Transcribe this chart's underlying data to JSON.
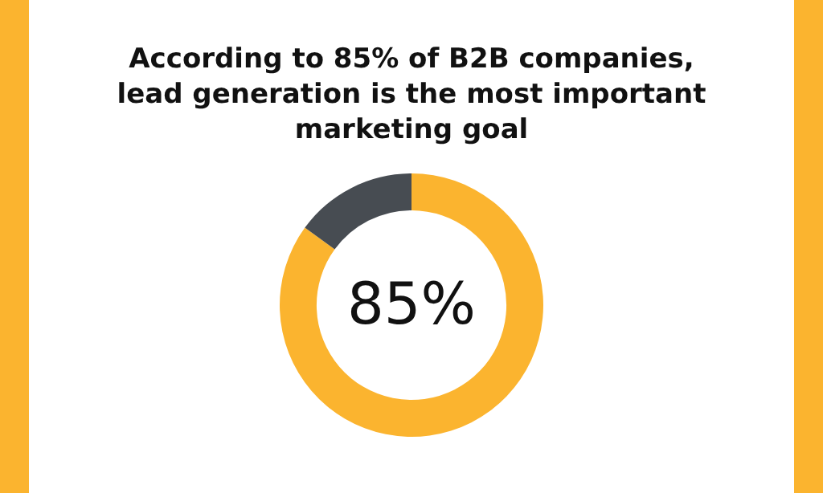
{
  "chart_data": {
    "type": "donut",
    "title": "According to 85% of B2B companies,\nlead generation is the most important\nmarketing goal",
    "categories": [
      null,
      null
    ],
    "values": [
      85,
      15
    ],
    "colors": [
      "#fbb42f",
      "#474c52"
    ],
    "value_labels": [
      "85%",
      null
    ],
    "legend": false
  }
}
